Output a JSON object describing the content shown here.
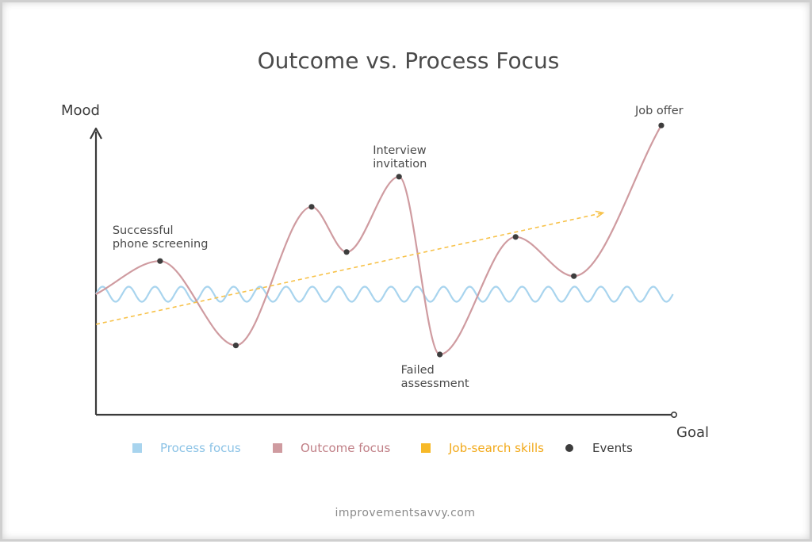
{
  "chart_data": {
    "type": "line",
    "title": "Outcome vs. Process Focus",
    "ylabel": "Mood",
    "xlabel": "Goal",
    "xlim": [
      0,
      100
    ],
    "ylim": [
      0,
      100
    ],
    "grid": false,
    "legend_position": "bottom",
    "series": [
      {
        "name": "Process focus",
        "style": "wave",
        "color": "#a8d4ee",
        "baseline": 40,
        "amplitude": 2.5,
        "cycles": 22,
        "x_range": [
          0,
          99
        ]
      },
      {
        "name": "Outcome focus",
        "style": "curve",
        "color": "#cf9ba0",
        "x": [
          0,
          11,
          24,
          37,
          43,
          52,
          59,
          72,
          82,
          97
        ],
        "y": [
          40,
          51,
          23,
          69,
          54,
          79,
          20,
          59,
          46,
          96
        ]
      },
      {
        "name": "Job-search skills",
        "style": "dashed-arrow",
        "color": "#f7c24a",
        "x": [
          0,
          87
        ],
        "y": [
          30,
          67
        ]
      }
    ],
    "events": {
      "name": "Events",
      "color": "#3d3d3d",
      "points": [
        {
          "x": 11,
          "y": 51,
          "label": [
            "Successful",
            "phone screening"
          ]
        },
        {
          "x": 24,
          "y": 23,
          "label": []
        },
        {
          "x": 37,
          "y": 69,
          "label": []
        },
        {
          "x": 43,
          "y": 54,
          "label": []
        },
        {
          "x": 52,
          "y": 79,
          "label": [
            "Interview",
            "invitation"
          ]
        },
        {
          "x": 59,
          "y": 20,
          "label": [
            "Failed",
            "assessment"
          ]
        },
        {
          "x": 72,
          "y": 59,
          "label": []
        },
        {
          "x": 82,
          "y": 46,
          "label": []
        },
        {
          "x": 97,
          "y": 96,
          "label": [
            "Job offer"
          ]
        }
      ]
    }
  },
  "legend": [
    {
      "label": "Process focus",
      "color": "#a8d4ee",
      "marker": "square",
      "text_color": "#8cc3e6"
    },
    {
      "label": "Outcome focus",
      "color": "#cf9ba0",
      "marker": "square",
      "text_color": "#c07f86"
    },
    {
      "label": "Job-search skills",
      "color": "#f7b928",
      "marker": "square",
      "text_color": "#f2a91a"
    },
    {
      "label": "Events",
      "color": "#3d3d3d",
      "marker": "circle",
      "text_color": "#3c3c3c"
    }
  ],
  "footer": {
    "source": "improvementsavvy.com"
  }
}
